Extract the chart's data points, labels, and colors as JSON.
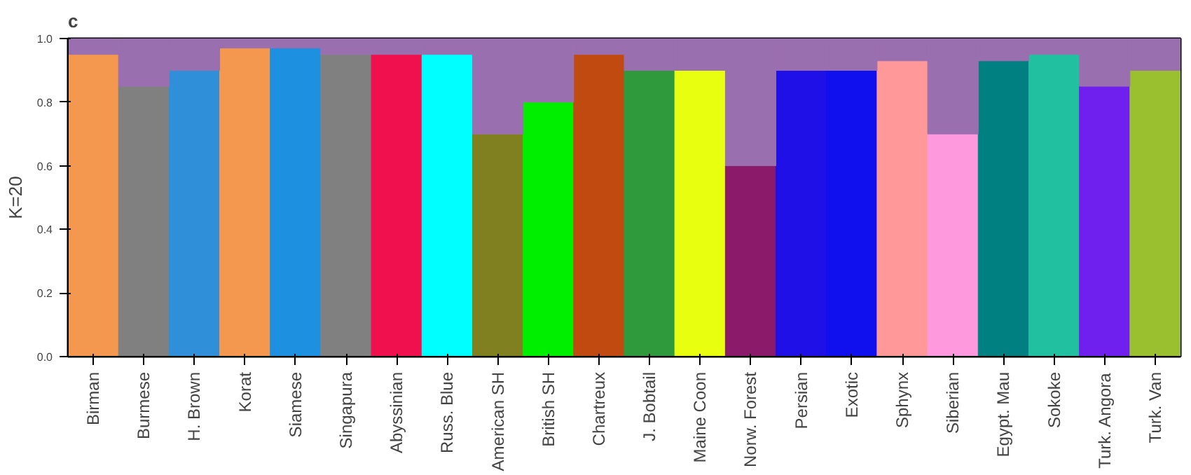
{
  "chart_data": {
    "type": "bar",
    "stacked": true,
    "title": "c",
    "ylabel": "K=20",
    "categories": [
      "Birman",
      "Burmese",
      "H. Brown",
      "Korat",
      "Siamese",
      "Singapura",
      "Abyssinian",
      "Russ. Blue",
      "American SH",
      "British SH",
      "Chartreux",
      "J. Bobtail",
      "Maine Coon",
      "Norw. Forest",
      "Persian",
      "Exotic",
      "Sphynx",
      "Siberian",
      "Egypt. Mau",
      "Sokoke",
      "Turk. Angora",
      "Turk. Van"
    ],
    "series": [
      {
        "colors": [
          "#f4984f",
          "#808080",
          "#2f8fd9",
          "#f4984f",
          "#1e90e0",
          "#808080",
          "#f0104e",
          "#00ffff",
          "#808020",
          "#00ee00",
          "#c04a10",
          "#2e9a3c",
          "#e8ff10",
          "#8b1a6b",
          "#2010e8",
          "#1010ee",
          "#ff9999",
          "#ff99dd",
          "#008080",
          "#20c0a0",
          "#7020ee",
          "#9ac030"
        ],
        "values": [
          0.95,
          0.85,
          0.9,
          0.97,
          0.97,
          0.95,
          0.95,
          0.95,
          0.7,
          0.8,
          0.95,
          0.9,
          0.9,
          0.6,
          0.9,
          0.9,
          0.93,
          0.7,
          0.93,
          0.95,
          0.85,
          0.9
        ]
      },
      {
        "color": "#9a6fb0",
        "values": [
          0.05,
          0.15,
          0.1,
          0.03,
          0.03,
          0.05,
          0.05,
          0.05,
          0.3,
          0.2,
          0.05,
          0.1,
          0.1,
          0.4,
          0.1,
          0.1,
          0.07,
          0.3,
          0.07,
          0.05,
          0.15,
          0.1
        ]
      }
    ],
    "ylim": [
      0,
      1
    ],
    "yticks": [
      {
        "value": 0,
        "label": "0.0"
      },
      {
        "value": 0.2,
        "label": "0.2"
      },
      {
        "value": 0.4,
        "label": "0.4"
      },
      {
        "value": 0.6,
        "label": "0.6"
      },
      {
        "value": 0.8,
        "label": "0.8"
      },
      {
        "value": 1,
        "label": "1.0"
      }
    ]
  }
}
